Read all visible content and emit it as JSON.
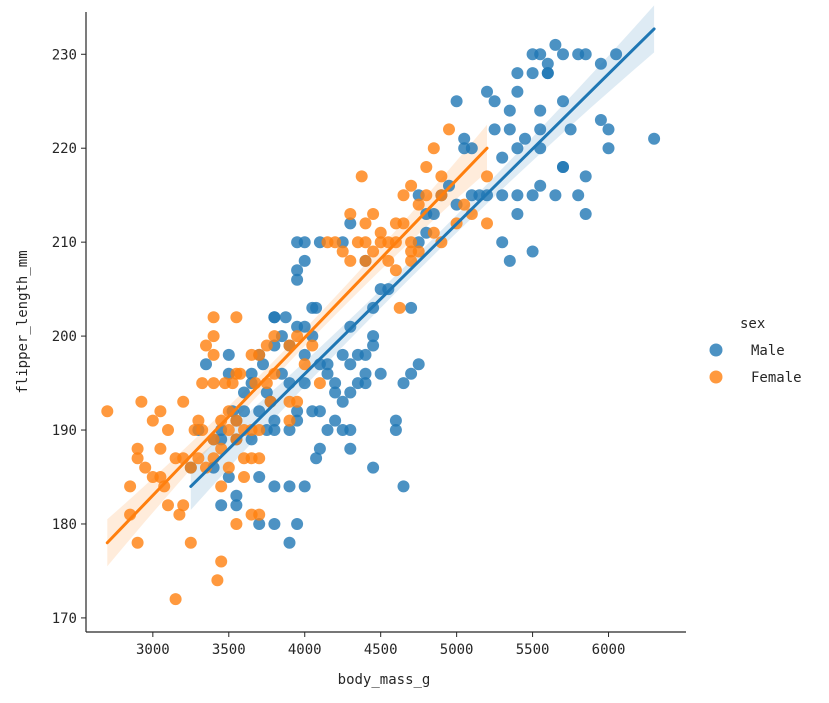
{
  "chart_data": {
    "type": "scatter",
    "xlabel": "body_mass_g",
    "ylabel": "flipper_length_mm",
    "xlim": [
      2560,
      6510
    ],
    "ylim": [
      168.5,
      234.5
    ],
    "xticks": [
      3000,
      3500,
      4000,
      4500,
      5000,
      5500,
      6000
    ],
    "yticks": [
      170,
      180,
      190,
      200,
      210,
      220,
      230
    ],
    "grid": false,
    "legend": {
      "title": "sex",
      "placement": "right"
    },
    "series": [
      {
        "name": "Male",
        "color": "#1f77b4",
        "fit": {
          "x": [
            3250,
            6300
          ],
          "y": [
            184,
            232.7
          ]
        },
        "points": [
          [
            3250,
            186
          ],
          [
            3300,
            190
          ],
          [
            3350,
            197
          ],
          [
            3400,
            186
          ],
          [
            3400,
            189
          ],
          [
            3450,
            182
          ],
          [
            3450,
            189
          ],
          [
            3450,
            190
          ],
          [
            3500,
            196
          ],
          [
            3500,
            198
          ],
          [
            3500,
            185
          ],
          [
            3525,
            192
          ],
          [
            3550,
            189
          ],
          [
            3550,
            182
          ],
          [
            3550,
            183
          ],
          [
            3550,
            191
          ],
          [
            3600,
            192
          ],
          [
            3600,
            194
          ],
          [
            3650,
            189
          ],
          [
            3650,
            196
          ],
          [
            3650,
            195
          ],
          [
            3700,
            198
          ],
          [
            3700,
            192
          ],
          [
            3700,
            185
          ],
          [
            3700,
            180
          ],
          [
            3725,
            197
          ],
          [
            3750,
            190
          ],
          [
            3750,
            194
          ],
          [
            3775,
            193
          ],
          [
            3800,
            191
          ],
          [
            3800,
            199
          ],
          [
            3800,
            190
          ],
          [
            3800,
            202
          ],
          [
            3800,
            202
          ],
          [
            3800,
            184
          ],
          [
            3800,
            180
          ],
          [
            3850,
            196
          ],
          [
            3850,
            200
          ],
          [
            3875,
            202
          ],
          [
            3900,
            178
          ],
          [
            3900,
            184
          ],
          [
            3900,
            190
          ],
          [
            3900,
            195
          ],
          [
            3900,
            199
          ],
          [
            3950,
            201
          ],
          [
            3950,
            180
          ],
          [
            3950,
            207
          ],
          [
            3950,
            210
          ],
          [
            3950,
            206
          ],
          [
            3950,
            192
          ],
          [
            3950,
            191
          ],
          [
            4000,
            210
          ],
          [
            4000,
            208
          ],
          [
            4000,
            195
          ],
          [
            4000,
            198
          ],
          [
            4000,
            201
          ],
          [
            4000,
            184
          ],
          [
            4050,
            200
          ],
          [
            4050,
            203
          ],
          [
            4050,
            192
          ],
          [
            4075,
            187
          ],
          [
            4075,
            203
          ],
          [
            4100,
            210
          ],
          [
            4100,
            197
          ],
          [
            4100,
            192
          ],
          [
            4100,
            188
          ],
          [
            4150,
            190
          ],
          [
            4150,
            197
          ],
          [
            4150,
            196
          ],
          [
            4200,
            191
          ],
          [
            4200,
            195
          ],
          [
            4200,
            194
          ],
          [
            4250,
            193
          ],
          [
            4250,
            210
          ],
          [
            4250,
            190
          ],
          [
            4250,
            198
          ],
          [
            4300,
            190
          ],
          [
            4300,
            197
          ],
          [
            4300,
            201
          ],
          [
            4300,
            212
          ],
          [
            4300,
            188
          ],
          [
            4300,
            194
          ],
          [
            4350,
            195
          ],
          [
            4350,
            198
          ],
          [
            4400,
            195
          ],
          [
            4400,
            198
          ],
          [
            4400,
            208
          ],
          [
            4400,
            196
          ],
          [
            4450,
            203
          ],
          [
            4450,
            186
          ],
          [
            4450,
            199
          ],
          [
            4450,
            200
          ],
          [
            4500,
            205
          ],
          [
            4500,
            196
          ],
          [
            4550,
            205
          ],
          [
            4600,
            191
          ],
          [
            4600,
            190
          ],
          [
            4650,
            184
          ],
          [
            4650,
            195
          ],
          [
            4700,
            196
          ],
          [
            4700,
            203
          ],
          [
            4750,
            197
          ],
          [
            4750,
            215
          ],
          [
            4750,
            210
          ],
          [
            4800,
            211
          ],
          [
            4800,
            213
          ],
          [
            4850,
            213
          ],
          [
            4900,
            215
          ],
          [
            4950,
            216
          ],
          [
            5000,
            214
          ],
          [
            5000,
            225
          ],
          [
            5050,
            220
          ],
          [
            5050,
            221
          ],
          [
            5100,
            220
          ],
          [
            5100,
            215
          ],
          [
            5150,
            215
          ],
          [
            5200,
            215
          ],
          [
            5200,
            226
          ],
          [
            5250,
            222
          ],
          [
            5250,
            225
          ],
          [
            5300,
            219
          ],
          [
            5300,
            215
          ],
          [
            5300,
            210
          ],
          [
            5350,
            208
          ],
          [
            5350,
            222
          ],
          [
            5350,
            224
          ],
          [
            5400,
            228
          ],
          [
            5400,
            226
          ],
          [
            5400,
            220
          ],
          [
            5400,
            213
          ],
          [
            5400,
            215
          ],
          [
            5450,
            221
          ],
          [
            5500,
            230
          ],
          [
            5500,
            215
          ],
          [
            5500,
            209
          ],
          [
            5500,
            228
          ],
          [
            5550,
            216
          ],
          [
            5550,
            222
          ],
          [
            5550,
            224
          ],
          [
            5550,
            230
          ],
          [
            5550,
            220
          ],
          [
            5600,
            228
          ],
          [
            5600,
            228
          ],
          [
            5600,
            229
          ],
          [
            5650,
            231
          ],
          [
            5650,
            215
          ],
          [
            5700,
            230
          ],
          [
            5700,
            218
          ],
          [
            5700,
            225
          ],
          [
            5700,
            218
          ],
          [
            5750,
            222
          ],
          [
            5800,
            230
          ],
          [
            5800,
            215
          ],
          [
            5850,
            230
          ],
          [
            5850,
            213
          ],
          [
            5850,
            217
          ],
          [
            5950,
            229
          ],
          [
            5950,
            223
          ],
          [
            6000,
            220
          ],
          [
            6000,
            222
          ],
          [
            6050,
            230
          ],
          [
            6300,
            221
          ]
        ]
      },
      {
        "name": "Female",
        "color": "#ff7f0e",
        "fit": {
          "x": [
            2700,
            5200
          ],
          "y": [
            178,
            220
          ]
        },
        "points": [
          [
            2700,
            192
          ],
          [
            2850,
            181
          ],
          [
            2850,
            184
          ],
          [
            2900,
            178
          ],
          [
            2900,
            187
          ],
          [
            2900,
            188
          ],
          [
            2925,
            193
          ],
          [
            2950,
            186
          ],
          [
            3000,
            185
          ],
          [
            3000,
            191
          ],
          [
            3050,
            192
          ],
          [
            3050,
            188
          ],
          [
            3050,
            185
          ],
          [
            3075,
            184
          ],
          [
            3100,
            182
          ],
          [
            3100,
            190
          ],
          [
            3150,
            187
          ],
          [
            3150,
            172
          ],
          [
            3175,
            181
          ],
          [
            3200,
            187
          ],
          [
            3200,
            193
          ],
          [
            3200,
            182
          ],
          [
            3250,
            186
          ],
          [
            3250,
            178
          ],
          [
            3275,
            190
          ],
          [
            3300,
            187
          ],
          [
            3300,
            191
          ],
          [
            3325,
            195
          ],
          [
            3325,
            190
          ],
          [
            3350,
            199
          ],
          [
            3350,
            186
          ],
          [
            3400,
            202
          ],
          [
            3400,
            189
          ],
          [
            3400,
            187
          ],
          [
            3400,
            195
          ],
          [
            3400,
            198
          ],
          [
            3400,
            200
          ],
          [
            3425,
            174
          ],
          [
            3450,
            176
          ],
          [
            3450,
            191
          ],
          [
            3450,
            188
          ],
          [
            3450,
            184
          ],
          [
            3475,
            195
          ],
          [
            3500,
            186
          ],
          [
            3500,
            190
          ],
          [
            3500,
            192
          ],
          [
            3525,
            195
          ],
          [
            3550,
            180
          ],
          [
            3550,
            196
          ],
          [
            3550,
            189
          ],
          [
            3550,
            191
          ],
          [
            3550,
            202
          ],
          [
            3575,
            196
          ],
          [
            3600,
            190
          ],
          [
            3600,
            185
          ],
          [
            3600,
            187
          ],
          [
            3650,
            198
          ],
          [
            3650,
            181
          ],
          [
            3650,
            187
          ],
          [
            3650,
            190
          ],
          [
            3675,
            195
          ],
          [
            3700,
            187
          ],
          [
            3700,
            181
          ],
          [
            3700,
            190
          ],
          [
            3700,
            198
          ],
          [
            3750,
            195
          ],
          [
            3750,
            199
          ],
          [
            3775,
            193
          ],
          [
            3800,
            200
          ],
          [
            3800,
            196
          ],
          [
            3900,
            193
          ],
          [
            3900,
            191
          ],
          [
            3900,
            199
          ],
          [
            3950,
            193
          ],
          [
            3950,
            200
          ],
          [
            4000,
            197
          ],
          [
            4050,
            199
          ],
          [
            4100,
            195
          ],
          [
            4150,
            210
          ],
          [
            4200,
            210
          ],
          [
            4250,
            209
          ],
          [
            4300,
            208
          ],
          [
            4300,
            213
          ],
          [
            4350,
            210
          ],
          [
            4375,
            217
          ],
          [
            4400,
            212
          ],
          [
            4400,
            208
          ],
          [
            4400,
            210
          ],
          [
            4450,
            209
          ],
          [
            4450,
            213
          ],
          [
            4500,
            210
          ],
          [
            4500,
            211
          ],
          [
            4550,
            208
          ],
          [
            4550,
            210
          ],
          [
            4600,
            212
          ],
          [
            4600,
            210
          ],
          [
            4600,
            207
          ],
          [
            4625,
            203
          ],
          [
            4650,
            212
          ],
          [
            4650,
            215
          ],
          [
            4700,
            208
          ],
          [
            4700,
            210
          ],
          [
            4700,
            209
          ],
          [
            4700,
            216
          ],
          [
            4750,
            214
          ],
          [
            4750,
            209
          ],
          [
            4800,
            218
          ],
          [
            4800,
            215
          ],
          [
            4850,
            211
          ],
          [
            4850,
            220
          ],
          [
            4900,
            210
          ],
          [
            4900,
            215
          ],
          [
            4900,
            217
          ],
          [
            4950,
            222
          ],
          [
            5000,
            212
          ],
          [
            5050,
            214
          ],
          [
            5100,
            213
          ],
          [
            5200,
            217
          ],
          [
            5200,
            212
          ]
        ]
      }
    ]
  }
}
